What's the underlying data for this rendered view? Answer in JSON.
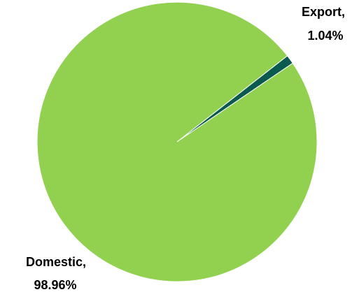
{
  "chart_data": {
    "type": "pie",
    "title": "",
    "slices": [
      {
        "label": "Domestic",
        "value": 98.96,
        "label_lines": [
          "Domestic,",
          "98.96%"
        ],
        "color": "#92D050"
      },
      {
        "label": "Export",
        "value": 1.04,
        "label_lines": [
          "Export,",
          "1.04%"
        ],
        "color": "#0B5A4F"
      }
    ],
    "legend": "none"
  }
}
